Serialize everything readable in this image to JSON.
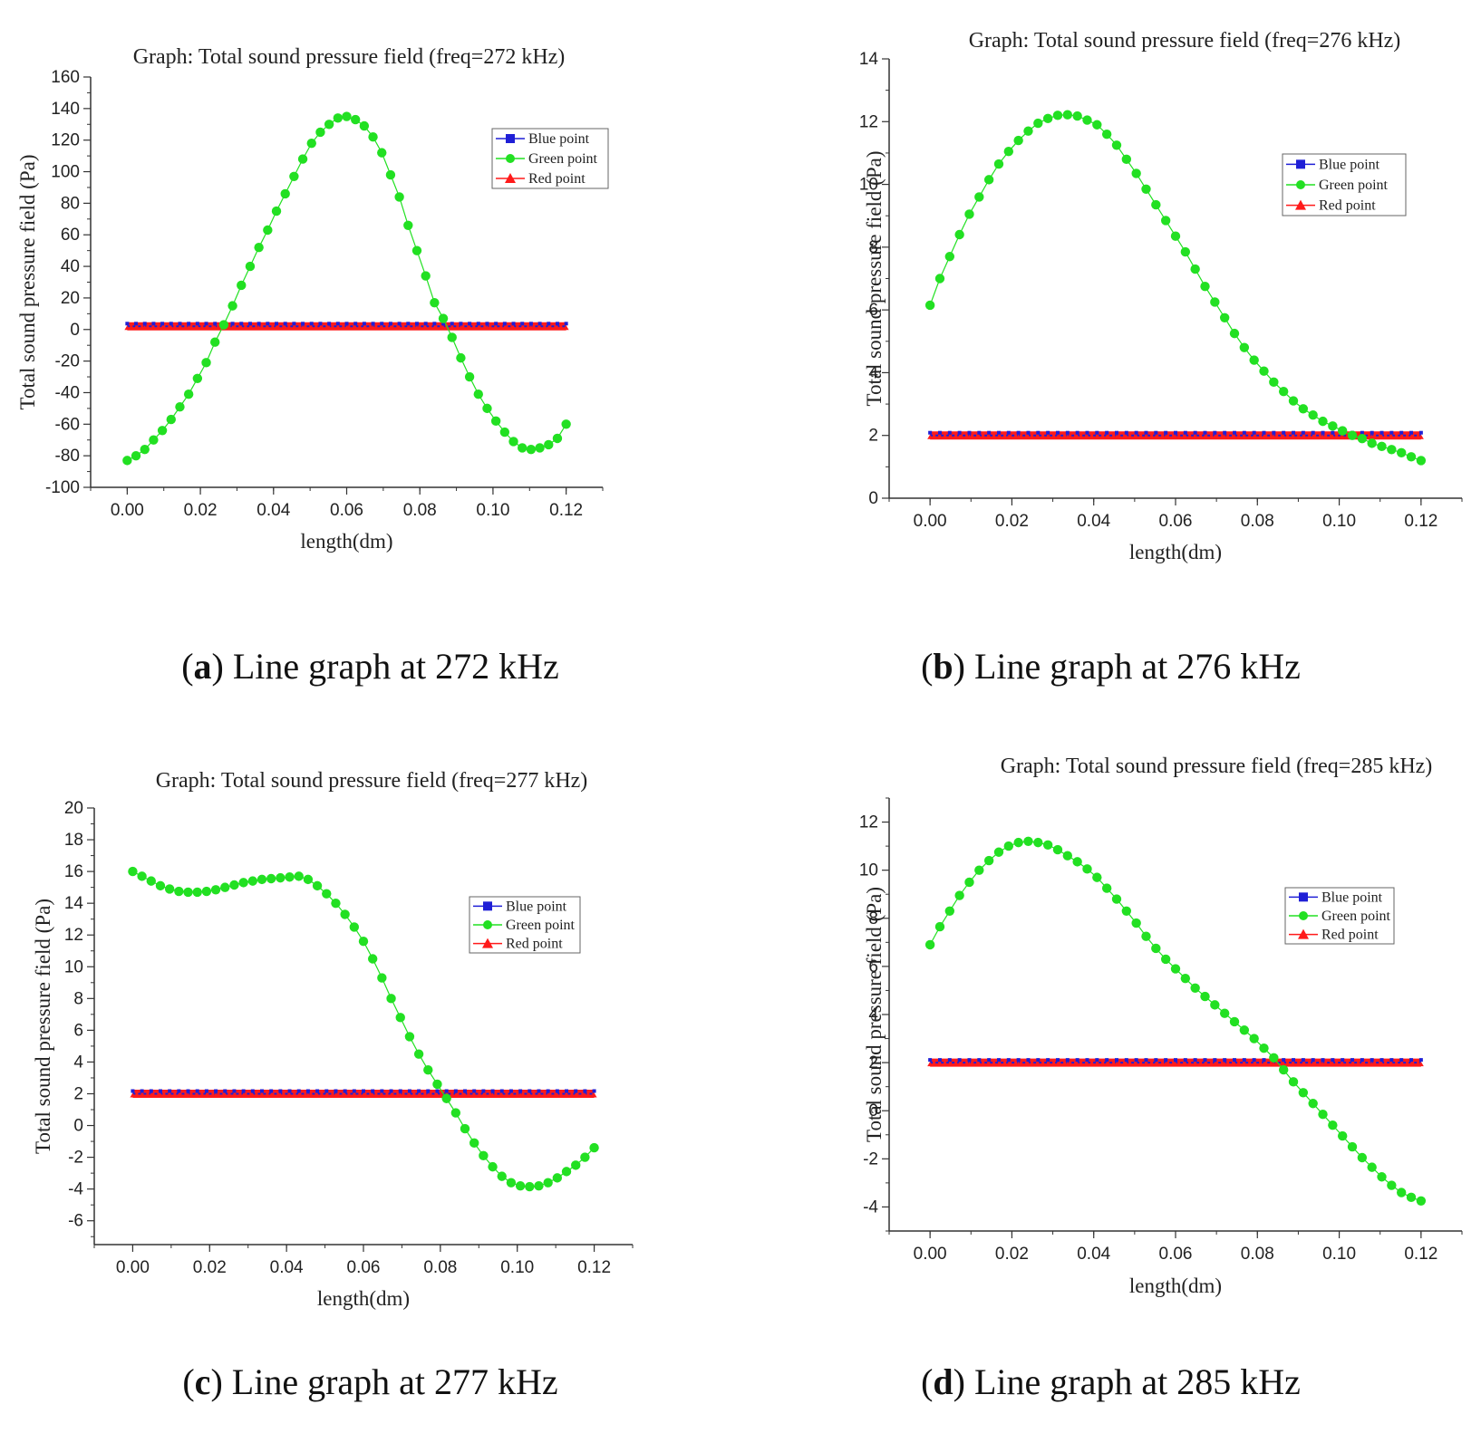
{
  "figure": {
    "panels": [
      {
        "letter": "a",
        "caption_text": "Line graph at 272 kHz"
      },
      {
        "letter": "b",
        "caption_text": "Line graph at 276 kHz"
      },
      {
        "letter": "c",
        "caption_text": "Line graph at 277 kHz"
      },
      {
        "letter": "d",
        "caption_text": "Line graph at 285 kHz"
      }
    ]
  },
  "colors": {
    "blue": "#1f1fd6",
    "green": "#22e022",
    "red": "#ff1a1a",
    "axis": "#333333"
  },
  "chart_data": [
    {
      "type": "line",
      "title": "Graph: Total sound pressure field (freq=272 kHz)",
      "xlabel": "length(dm)",
      "ylabel": "Total sound pressure field (Pa)",
      "xlim": [
        -0.01,
        0.13
      ],
      "ylim": [
        -100,
        160
      ],
      "xticks": [
        "0.00",
        "0.02",
        "0.04",
        "0.06",
        "0.08",
        "0.10",
        "0.12"
      ],
      "yticks": [
        "-100",
        "-80",
        "-60",
        "-40",
        "-20",
        "0",
        "20",
        "40",
        "60",
        "80",
        "100",
        "120",
        "140",
        "160"
      ],
      "legend": [
        "Blue point",
        "Green point",
        "Red point"
      ],
      "legend_position": "top-right",
      "x": [
        0.0,
        0.0024,
        0.0048,
        0.0072,
        0.0096,
        0.012,
        0.0144,
        0.0168,
        0.0192,
        0.0216,
        0.024,
        0.0264,
        0.0288,
        0.0312,
        0.0336,
        0.036,
        0.0384,
        0.0408,
        0.0432,
        0.0456,
        0.048,
        0.0504,
        0.0528,
        0.0552,
        0.0576,
        0.06,
        0.0624,
        0.0648,
        0.0672,
        0.0696,
        0.072,
        0.0744,
        0.0768,
        0.0792,
        0.0816,
        0.084,
        0.0864,
        0.0888,
        0.0912,
        0.0936,
        0.096,
        0.0984,
        0.1008,
        0.1032,
        0.1056,
        0.108,
        0.1104,
        0.1128,
        0.1152,
        0.1176,
        0.12
      ],
      "series": [
        {
          "name": "Blue point",
          "values": [
            2,
            2,
            2,
            2,
            2,
            2,
            2,
            2,
            2,
            2,
            2,
            2,
            2,
            2,
            2,
            2,
            2,
            2,
            2,
            2,
            2,
            2,
            2,
            2,
            2,
            2,
            2,
            2,
            2,
            2,
            2,
            2,
            2,
            2,
            2,
            2,
            2,
            2,
            2,
            2,
            2,
            2,
            2,
            2,
            2,
            2,
            2,
            2,
            2,
            2,
            2
          ]
        },
        {
          "name": "Green point",
          "values": [
            -83,
            -80,
            -76,
            -70,
            -64,
            -57,
            -49,
            -41,
            -31,
            -21,
            -8,
            3,
            15,
            28,
            40,
            52,
            63,
            75,
            86,
            97,
            108,
            118,
            125,
            130,
            134,
            135,
            133,
            129,
            122,
            112,
            98,
            84,
            66,
            50,
            34,
            17,
            7,
            -5,
            -18,
            -30,
            -41,
            -50,
            -58,
            -65,
            -71,
            -75,
            -76,
            -75,
            -73,
            -69,
            -60
          ]
        },
        {
          "name": "Red point",
          "values": [
            2,
            2,
            2,
            2,
            2,
            2,
            2,
            2,
            2,
            2,
            2,
            2,
            2,
            2,
            2,
            2,
            2,
            2,
            2,
            2,
            2,
            2,
            2,
            2,
            2,
            2,
            2,
            2,
            2,
            2,
            2,
            2,
            2,
            2,
            2,
            2,
            2,
            2,
            2,
            2,
            2,
            2,
            2,
            2,
            2,
            2,
            2,
            2,
            2,
            2,
            2
          ]
        }
      ]
    },
    {
      "type": "line",
      "title": "Graph: Total sound pressure field (freq=276 kHz)",
      "xlabel": "length(dm)",
      "ylabel": "Total sound pressure field (Pa)",
      "xlim": [
        -0.01,
        0.13
      ],
      "ylim": [
        0,
        14
      ],
      "xticks": [
        "0.00",
        "0.02",
        "0.04",
        "0.06",
        "0.08",
        "0.10",
        "0.12"
      ],
      "yticks": [
        "0",
        "2",
        "4",
        "6",
        "8",
        "10",
        "12",
        "14"
      ],
      "legend": [
        "Blue point",
        "Green point",
        "Red point"
      ],
      "legend_position": "top-right",
      "x": [
        0.0,
        0.0024,
        0.0048,
        0.0072,
        0.0096,
        0.012,
        0.0144,
        0.0168,
        0.0192,
        0.0216,
        0.024,
        0.0264,
        0.0288,
        0.0312,
        0.0336,
        0.036,
        0.0384,
        0.0408,
        0.0432,
        0.0456,
        0.048,
        0.0504,
        0.0528,
        0.0552,
        0.0576,
        0.06,
        0.0624,
        0.0648,
        0.0672,
        0.0696,
        0.072,
        0.0744,
        0.0768,
        0.0792,
        0.0816,
        0.084,
        0.0864,
        0.0888,
        0.0912,
        0.0936,
        0.096,
        0.0984,
        0.1008,
        0.1032,
        0.1056,
        0.108,
        0.1104,
        0.1128,
        0.1152,
        0.1176,
        0.12
      ],
      "series": [
        {
          "name": "Blue point",
          "values": [
            2,
            2,
            2,
            2,
            2,
            2,
            2,
            2,
            2,
            2,
            2,
            2,
            2,
            2,
            2,
            2,
            2,
            2,
            2,
            2,
            2,
            2,
            2,
            2,
            2,
            2,
            2,
            2,
            2,
            2,
            2,
            2,
            2,
            2,
            2,
            2,
            2,
            2,
            2,
            2,
            2,
            2,
            2,
            2,
            2,
            2,
            2,
            2,
            2,
            2,
            2
          ]
        },
        {
          "name": "Green point",
          "values": [
            6.15,
            7.0,
            7.7,
            8.4,
            9.05,
            9.6,
            10.15,
            10.65,
            11.05,
            11.4,
            11.7,
            11.95,
            12.1,
            12.2,
            12.22,
            12.18,
            12.05,
            11.9,
            11.6,
            11.25,
            10.8,
            10.35,
            9.85,
            9.35,
            8.85,
            8.35,
            7.85,
            7.3,
            6.75,
            6.25,
            5.75,
            5.25,
            4.8,
            4.4,
            4.05,
            3.7,
            3.4,
            3.1,
            2.85,
            2.65,
            2.45,
            2.3,
            2.15,
            2.0,
            1.9,
            1.75,
            1.65,
            1.55,
            1.45,
            1.32,
            1.2
          ]
        },
        {
          "name": "Red point",
          "values": [
            2,
            2,
            2,
            2,
            2,
            2,
            2,
            2,
            2,
            2,
            2,
            2,
            2,
            2,
            2,
            2,
            2,
            2,
            2,
            2,
            2,
            2,
            2,
            2,
            2,
            2,
            2,
            2,
            2,
            2,
            2,
            2,
            2,
            2,
            2,
            2,
            2,
            2,
            2,
            2,
            2,
            2,
            2,
            2,
            2,
            2,
            2,
            2,
            2,
            2,
            2
          ]
        }
      ]
    },
    {
      "type": "line",
      "title": "Graph: Total sound pressure field (freq=277 kHz)",
      "xlabel": "length(dm)",
      "ylabel": "Total sound pressure field (Pa)",
      "xlim": [
        -0.01,
        0.13
      ],
      "ylim": [
        -7.5,
        20
      ],
      "xticks": [
        "0.00",
        "0.02",
        "0.04",
        "0.06",
        "0.08",
        "0.10",
        "0.12"
      ],
      "yticks": [
        "-6",
        "-4",
        "-2",
        "0",
        "2",
        "4",
        "6",
        "8",
        "10",
        "12",
        "14",
        "16",
        "18",
        "20"
      ],
      "legend": [
        "Blue point",
        "Green point",
        "Red point"
      ],
      "legend_position": "top-right",
      "x": [
        0.0,
        0.0024,
        0.0048,
        0.0072,
        0.0096,
        0.012,
        0.0144,
        0.0168,
        0.0192,
        0.0216,
        0.024,
        0.0264,
        0.0288,
        0.0312,
        0.0336,
        0.036,
        0.0384,
        0.0408,
        0.0432,
        0.0456,
        0.048,
        0.0504,
        0.0528,
        0.0552,
        0.0576,
        0.06,
        0.0624,
        0.0648,
        0.0672,
        0.0696,
        0.072,
        0.0744,
        0.0768,
        0.0792,
        0.0816,
        0.084,
        0.0864,
        0.0888,
        0.0912,
        0.0936,
        0.096,
        0.0984,
        0.1008,
        0.1032,
        0.1056,
        0.108,
        0.1104,
        0.1128,
        0.1152,
        0.1176,
        0.12
      ],
      "series": [
        {
          "name": "Blue point",
          "values": [
            2,
            2,
            2,
            2,
            2,
            2,
            2,
            2,
            2,
            2,
            2,
            2,
            2,
            2,
            2,
            2,
            2,
            2,
            2,
            2,
            2,
            2,
            2,
            2,
            2,
            2,
            2,
            2,
            2,
            2,
            2,
            2,
            2,
            2,
            2,
            2,
            2,
            2,
            2,
            2,
            2,
            2,
            2,
            2,
            2,
            2,
            2,
            2,
            2,
            2,
            2
          ]
        },
        {
          "name": "Green point",
          "values": [
            16.0,
            15.7,
            15.4,
            15.1,
            14.9,
            14.75,
            14.7,
            14.7,
            14.75,
            14.85,
            15.0,
            15.15,
            15.3,
            15.4,
            15.5,
            15.55,
            15.6,
            15.65,
            15.7,
            15.5,
            15.1,
            14.6,
            14.0,
            13.3,
            12.5,
            11.6,
            10.5,
            9.3,
            8.0,
            6.8,
            5.6,
            4.5,
            3.5,
            2.6,
            1.7,
            0.8,
            -0.2,
            -1.1,
            -1.9,
            -2.6,
            -3.2,
            -3.6,
            -3.8,
            -3.85,
            -3.8,
            -3.6,
            -3.3,
            -2.9,
            -2.5,
            -2.0,
            -1.4
          ]
        },
        {
          "name": "Red point",
          "values": [
            2,
            2,
            2,
            2,
            2,
            2,
            2,
            2,
            2,
            2,
            2,
            2,
            2,
            2,
            2,
            2,
            2,
            2,
            2,
            2,
            2,
            2,
            2,
            2,
            2,
            2,
            2,
            2,
            2,
            2,
            2,
            2,
            2,
            2,
            2,
            2,
            2,
            2,
            2,
            2,
            2,
            2,
            2,
            2,
            2,
            2,
            2,
            2,
            2,
            2,
            2
          ]
        }
      ]
    },
    {
      "type": "line",
      "title": "Graph: Total sound pressure field (freq=285 kHz)",
      "xlabel": "length(dm)",
      "ylabel": "Total sound pressure field (Pa)",
      "xlim": [
        -0.01,
        0.13
      ],
      "ylim": [
        -5,
        13
      ],
      "xticks": [
        "0.00",
        "0.02",
        "0.04",
        "0.06",
        "0.08",
        "0.10",
        "0.12"
      ],
      "yticks": [
        "-4",
        "-2",
        "0",
        "2",
        "4",
        "6",
        "8",
        "10",
        "12"
      ],
      "legend": [
        "Blue point",
        "Green point",
        "Red point"
      ],
      "legend_position": "top-right",
      "x": [
        0.0,
        0.0024,
        0.0048,
        0.0072,
        0.0096,
        0.012,
        0.0144,
        0.0168,
        0.0192,
        0.0216,
        0.024,
        0.0264,
        0.0288,
        0.0312,
        0.0336,
        0.036,
        0.0384,
        0.0408,
        0.0432,
        0.0456,
        0.048,
        0.0504,
        0.0528,
        0.0552,
        0.0576,
        0.06,
        0.0624,
        0.0648,
        0.0672,
        0.0696,
        0.072,
        0.0744,
        0.0768,
        0.0792,
        0.0816,
        0.084,
        0.0864,
        0.0888,
        0.0912,
        0.0936,
        0.096,
        0.0984,
        0.1008,
        0.1032,
        0.1056,
        0.108,
        0.1104,
        0.1128,
        0.1152,
        0.1176,
        0.12
      ],
      "series": [
        {
          "name": "Blue point",
          "values": [
            2,
            2,
            2,
            2,
            2,
            2,
            2,
            2,
            2,
            2,
            2,
            2,
            2,
            2,
            2,
            2,
            2,
            2,
            2,
            2,
            2,
            2,
            2,
            2,
            2,
            2,
            2,
            2,
            2,
            2,
            2,
            2,
            2,
            2,
            2,
            2,
            2,
            2,
            2,
            2,
            2,
            2,
            2,
            2,
            2,
            2,
            2,
            2,
            2,
            2,
            2
          ]
        },
        {
          "name": "Green point",
          "values": [
            6.9,
            7.65,
            8.3,
            8.95,
            9.5,
            10.0,
            10.4,
            10.75,
            11.0,
            11.15,
            11.2,
            11.15,
            11.05,
            10.85,
            10.6,
            10.35,
            10.05,
            9.7,
            9.25,
            8.8,
            8.3,
            7.8,
            7.25,
            6.75,
            6.3,
            5.9,
            5.5,
            5.1,
            4.75,
            4.4,
            4.05,
            3.7,
            3.35,
            3.0,
            2.6,
            2.2,
            1.7,
            1.2,
            0.75,
            0.3,
            -0.15,
            -0.6,
            -1.05,
            -1.5,
            -1.95,
            -2.35,
            -2.75,
            -3.1,
            -3.4,
            -3.6,
            -3.75
          ]
        },
        {
          "name": "Red point",
          "values": [
            2,
            2,
            2,
            2,
            2,
            2,
            2,
            2,
            2,
            2,
            2,
            2,
            2,
            2,
            2,
            2,
            2,
            2,
            2,
            2,
            2,
            2,
            2,
            2,
            2,
            2,
            2,
            2,
            2,
            2,
            2,
            2,
            2,
            2,
            2,
            2,
            2,
            2,
            2,
            2,
            2,
            2,
            2,
            2,
            2,
            2,
            2,
            2,
            2,
            2,
            2
          ]
        }
      ]
    }
  ]
}
